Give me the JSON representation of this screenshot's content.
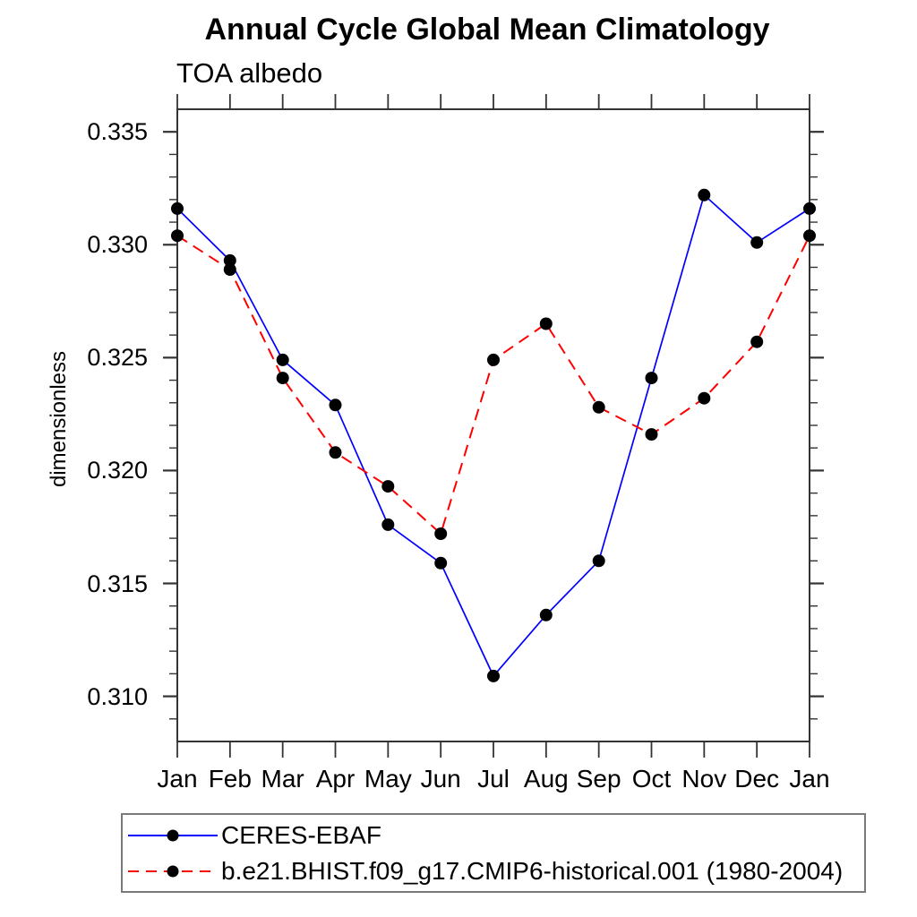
{
  "chart": {
    "title": "Annual Cycle Global Mean Climatology",
    "subtitle": "TOA albedo",
    "ylabel": "dimensionless"
  },
  "chart_data": {
    "type": "line",
    "title": "Annual Cycle Global Mean Climatology",
    "subtitle": "TOA albedo",
    "xlabel": "",
    "ylabel": "dimensionless",
    "categories": [
      "Jan",
      "Feb",
      "Mar",
      "Apr",
      "May",
      "Jun",
      "Jul",
      "Aug",
      "Sep",
      "Oct",
      "Nov",
      "Dec",
      "Jan"
    ],
    "series": [
      {
        "name": "CERES-EBAF",
        "color": "#0000ff",
        "line_style": "solid",
        "marker": "filled-circle",
        "marker_color": "#000000",
        "values": [
          0.3316,
          0.3293,
          0.3249,
          0.3229,
          0.3176,
          0.3159,
          0.3109,
          0.3136,
          0.316,
          0.3241,
          0.3322,
          0.3301,
          0.3316
        ]
      },
      {
        "name": "b.e21.BHIST.f09_g17.CMIP6-historical.001 (1980-2004)",
        "color": "#ff0000",
        "line_style": "dashed",
        "marker": "filled-circle",
        "marker_color": "#000000",
        "values": [
          0.3304,
          0.3289,
          0.3241,
          0.3208,
          0.3193,
          0.3172,
          0.3249,
          0.3265,
          0.3228,
          0.3216,
          0.3232,
          0.3257,
          0.3304
        ]
      }
    ],
    "ylim": [
      0.308,
      0.336
    ],
    "yticks_major": [
      0.31,
      0.315,
      0.32,
      0.325,
      0.33,
      0.335
    ],
    "ytick_labels": [
      "0.310",
      "0.315",
      "0.320",
      "0.325",
      "0.330",
      "0.335"
    ],
    "yminor_step": 0.001,
    "grid": "off",
    "legend_position": "bottom-left",
    "axis_color": "#333333"
  }
}
